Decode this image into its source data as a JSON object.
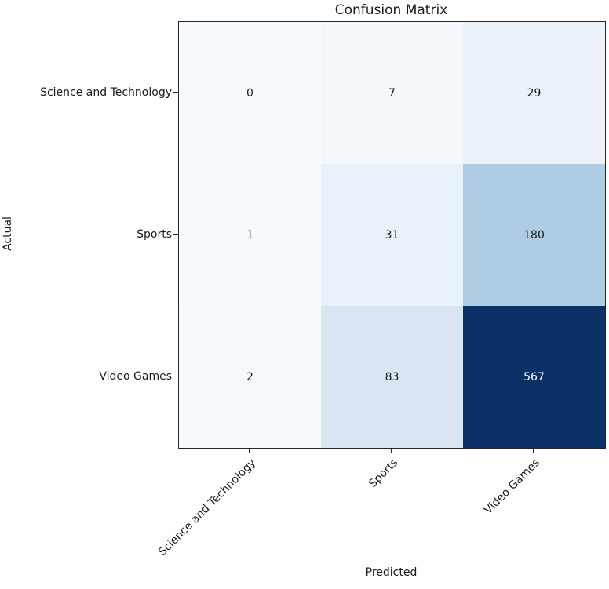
{
  "chart_data": {
    "type": "heatmap",
    "title": "Confusion Matrix",
    "xlabel": "Predicted",
    "ylabel": "Actual",
    "x_categories": [
      "Science and Technology",
      "Sports",
      "Video Games"
    ],
    "y_categories": [
      "Science and Technology",
      "Sports",
      "Video Games"
    ],
    "values": [
      [
        0,
        7,
        29
      ],
      [
        1,
        31,
        180
      ],
      [
        2,
        83,
        567
      ]
    ],
    "value_range": [
      0,
      567
    ],
    "colormap": "Blues",
    "legend": "none",
    "grid": "off",
    "cell_colors": [
      [
        "#f7fbff",
        "#f4f9fe",
        "#ebf2fa"
      ],
      [
        "#f7fbff",
        "#e9f1fa",
        "#aecde5"
      ],
      [
        "#f6fafe",
        "#d9e6f2",
        "#0b3166"
      ]
    ],
    "cell_text_colors": [
      [
        "#1a1a1a",
        "#1a1a1a",
        "#1a1a1a"
      ],
      [
        "#1a1a1a",
        "#1a1a1a",
        "#1a1a1a"
      ],
      [
        "#1a1a1a",
        "#1a1a1a",
        "#ffffff"
      ]
    ]
  },
  "colors": {
    "background": "#ffffff",
    "axis": "#262626",
    "text": "#1a1a1a"
  }
}
